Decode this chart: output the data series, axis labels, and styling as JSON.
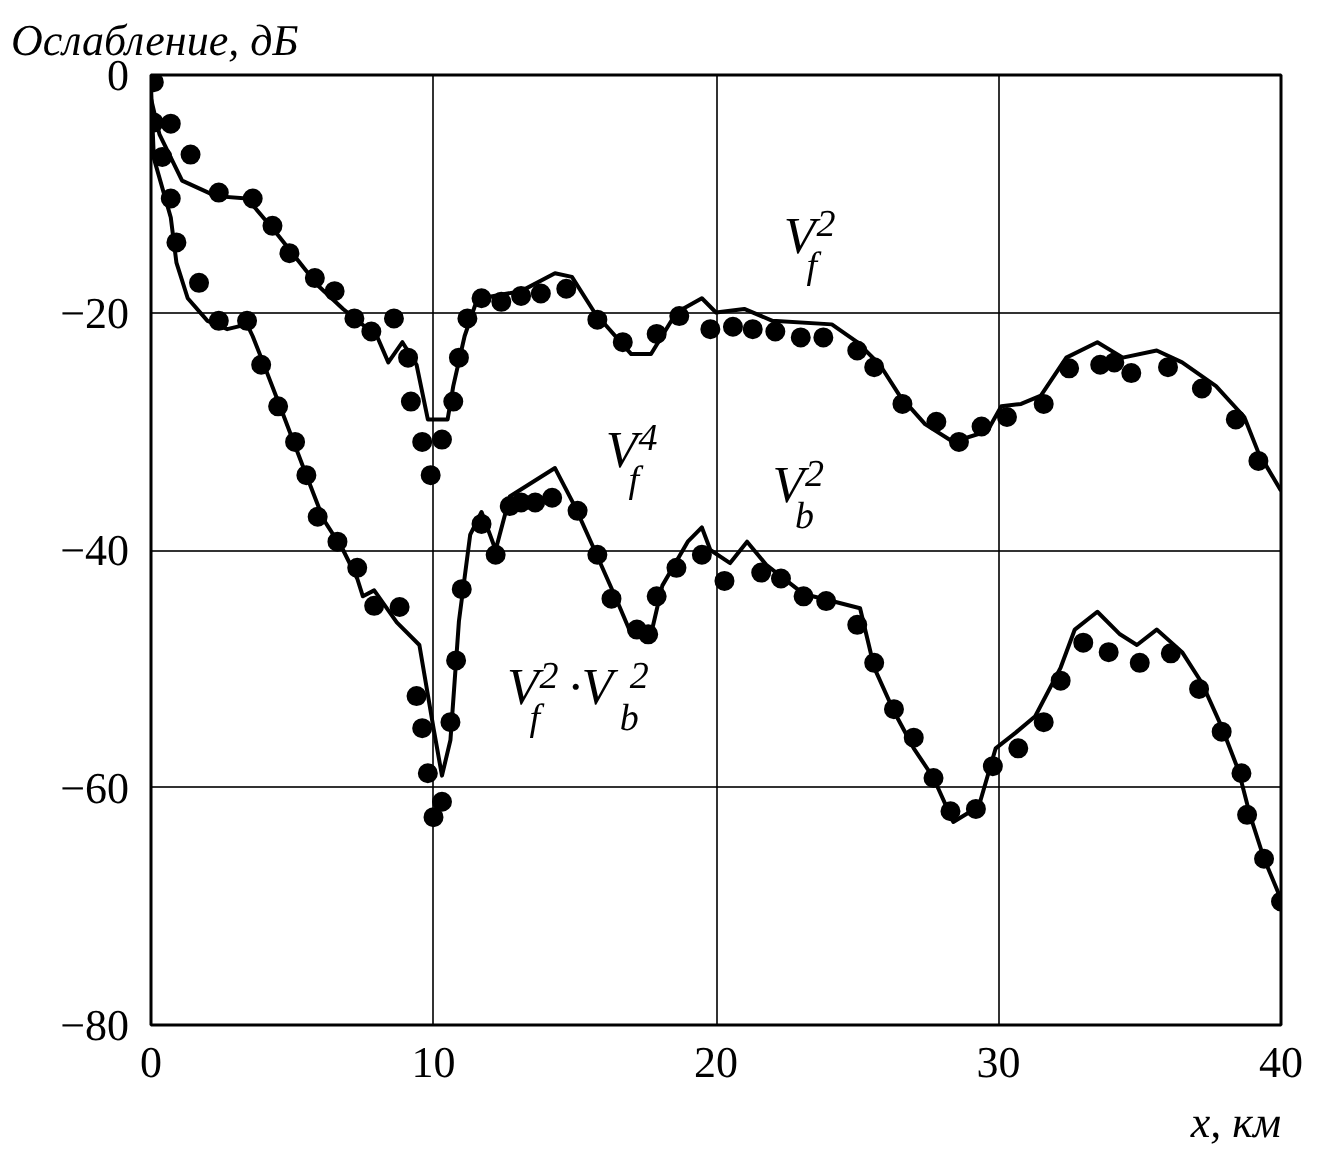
{
  "chart_data": {
    "type": "line",
    "xlabel": "x, км",
    "ylabel": "Ослабление, дБ",
    "xlim": [
      0,
      40
    ],
    "ylim": [
      -80,
      0
    ],
    "xticks": [
      0,
      10,
      20,
      30,
      40
    ],
    "yticks": [
      0,
      -20,
      -40,
      -60,
      -80
    ],
    "grid": true,
    "series": [
      {
        "color": "#000000",
        "line_style": "solid",
        "marker": "none",
        "x": [
          0,
          0.3,
          1.1,
          2.3,
          3.4,
          4.4,
          5.9,
          6.8,
          8.0,
          8.4,
          8.9,
          9.4,
          9.8,
          10.5,
          10.7,
          11.1,
          11.5,
          11.7,
          13.1,
          14.3,
          14.9,
          15.7,
          17.0,
          17.7,
          18.6,
          19.5,
          20.0,
          21.0,
          22.0,
          24.1,
          25.0,
          25.8,
          26.5,
          27.4,
          28.4,
          29.6,
          30.1,
          30.8,
          31.5,
          32.4,
          33.5,
          34.4,
          35.6,
          36.5,
          37.7,
          38.7,
          39.2,
          40.0
        ],
        "values": [
          -2,
          -5,
          -8.9,
          -10.2,
          -10.4,
          -13.2,
          -17.7,
          -19.7,
          -22,
          -24.2,
          -22.5,
          -24.4,
          -29,
          -29,
          -26.2,
          -22,
          -19.2,
          -18.8,
          -18.2,
          -16.7,
          -17,
          -20,
          -23.5,
          -23.5,
          -20,
          -18.8,
          -20,
          -19.7,
          -20.7,
          -21,
          -22.5,
          -24.4,
          -27,
          -29.4,
          -30.9,
          -30,
          -27.9,
          -27.7,
          -27,
          -23.8,
          -22.5,
          -23.8,
          -23.2,
          -24.2,
          -26.2,
          -28.8,
          -31.8,
          -35
        ]
      },
      {
        "type": "scatter",
        "color": "#000000",
        "marker": "circle",
        "x": [
          0.1,
          0.7,
          1.4,
          2.4,
          3.6,
          4.3,
          4.9,
          5.8,
          6.5,
          7.2,
          7.8,
          8.6,
          9.1,
          9.2,
          9.6,
          9.9,
          10.3,
          10.7,
          10.9,
          11.2,
          11.7,
          12.4,
          13.1,
          13.8,
          14.7,
          15.8,
          16.7,
          17.9,
          18.7,
          19.8,
          20.6,
          21.3,
          22.1,
          23.0,
          23.8,
          25.0,
          25.6,
          26.6,
          27.8,
          28.6,
          29.4,
          30.3,
          31.6,
          32.5,
          33.6,
          34.1,
          34.7,
          36.0,
          37.2,
          38.4,
          39.2
        ],
        "values": [
          -4,
          -4.1,
          -6.7,
          -9.9,
          -10.4,
          -12.7,
          -15,
          -17.1,
          -18.2,
          -20.5,
          -21.6,
          -20.5,
          -23.8,
          -27.5,
          -30.9,
          -33.7,
          -30.7,
          -27.5,
          -23.8,
          -20.5,
          -18.8,
          -19.1,
          -18.6,
          -18.4,
          -18,
          -20.6,
          -22.5,
          -21.8,
          -20.3,
          -21.4,
          -21.2,
          -21.4,
          -21.6,
          -22.1,
          -22.1,
          -23.2,
          -24.6,
          -27.7,
          -29.2,
          -30.9,
          -29.6,
          -28.8,
          -27.7,
          -24.7,
          -24.4,
          -24.2,
          -25.1,
          -24.6,
          -26.4,
          -29,
          -32.5
        ]
      },
      {
        "color": "#000000",
        "line_style": "solid",
        "marker": "none",
        "x": [
          0,
          0.1,
          0.7,
          0.9,
          1.3,
          2.0,
          2.7,
          3.4,
          3.6,
          3.9,
          4.6,
          5.4,
          6.1,
          6.8,
          7.3,
          7.5,
          7.9,
          8.7,
          9.5,
          10.0,
          10.3,
          10.6,
          10.9,
          11.3,
          11.7,
          12.2,
          12.7,
          14.3,
          15.0,
          15.7,
          16.5,
          17.0,
          17.7,
          18.1,
          19.0,
          19.5,
          19.8,
          20.5,
          21.1,
          21.8,
          23.1,
          24.1,
          25.1,
          25.6,
          26.3,
          27.0,
          27.7,
          28.4,
          29.3,
          29.9,
          30.6,
          31.3,
          32.2,
          32.7,
          33.5,
          34.3,
          34.9,
          35.6,
          36.5,
          37.2,
          37.9,
          38.5,
          38.9,
          39.4,
          40.0
        ],
        "values": [
          -1,
          -7,
          -12,
          -15.8,
          -18.8,
          -20.7,
          -21.4,
          -21,
          -22,
          -23.8,
          -28.1,
          -33.1,
          -37.4,
          -40,
          -42.4,
          -43.9,
          -43.4,
          -46.1,
          -48,
          -55,
          -59,
          -56,
          -46,
          -38.7,
          -36.8,
          -40,
          -35.5,
          -33.1,
          -36.3,
          -40,
          -44.3,
          -47.1,
          -47.1,
          -43,
          -39.3,
          -38.1,
          -40,
          -41.1,
          -39.3,
          -41.3,
          -43.7,
          -44.3,
          -44.9,
          -49.9,
          -53.6,
          -56.7,
          -59.2,
          -62.9,
          -61.6,
          -56.7,
          -55.4,
          -54,
          -49.9,
          -46.7,
          -45.2,
          -47.1,
          -48,
          -46.7,
          -48.6,
          -51.2,
          -54.9,
          -58.6,
          -62.3,
          -66,
          -69.4
        ]
      },
      {
        "type": "scatter",
        "color": "#000000",
        "marker": "circle",
        "x": [
          0.1,
          0.4,
          0.7,
          0.9,
          1.7,
          2.4,
          3.4,
          3.9,
          4.5,
          5.1,
          5.5,
          5.9,
          6.6,
          7.3,
          7.9,
          8.8,
          9.4,
          9.6,
          9.8,
          10.0,
          10.3,
          10.6,
          10.8,
          11.0,
          11.7,
          12.2,
          12.7,
          13.1,
          13.6,
          14.2,
          15.1,
          15.8,
          16.3,
          17.2,
          17.6,
          17.9,
          18.6,
          19.5,
          20.3,
          21.6,
          22.3,
          23.1,
          23.9,
          25.0,
          25.6,
          26.3,
          27.0,
          27.7,
          28.3,
          29.2,
          29.8,
          30.7,
          31.6,
          32.2,
          33.0,
          33.9,
          35.0,
          36.1,
          37.1,
          37.9,
          38.6,
          38.8,
          39.4,
          40.0
        ],
        "values": [
          -0.6,
          -6.9,
          -10.4,
          -14.1,
          -17.5,
          -20.7,
          -20.7,
          -24.4,
          -27.9,
          -30.9,
          -33.7,
          -37.2,
          -39.3,
          -41.5,
          -44.7,
          -44.8,
          -52.3,
          -55,
          -58.8,
          -62.5,
          -61.2,
          -54.5,
          -49.3,
          -43.3,
          -37.8,
          -40.4,
          -36.3,
          -36,
          -36,
          -35.6,
          -36.7,
          -40.4,
          -44.1,
          -46.7,
          -47.1,
          -43.9,
          -41.5,
          -40.4,
          -42.6,
          -41.9,
          -42.4,
          -43.9,
          -44.3,
          -46.3,
          -49.5,
          -53.4,
          -55.8,
          -59.2,
          -62,
          -61.8,
          -58.2,
          -56.7,
          -54.5,
          -51,
          -47.8,
          -48.6,
          -49.5,
          -48.7,
          -51.7,
          -55.3,
          -58.8,
          -62.3,
          -66,
          -69.6
        ]
      }
    ],
    "annotations": [
      "V$_{f}$$^{2}$",
      "V$_{b}$$^{2}$",
      "V$_{f}$$^{4}$",
      "V$_{f}$$^{2}$·V$_{b}$$^{2}$"
    ]
  }
}
